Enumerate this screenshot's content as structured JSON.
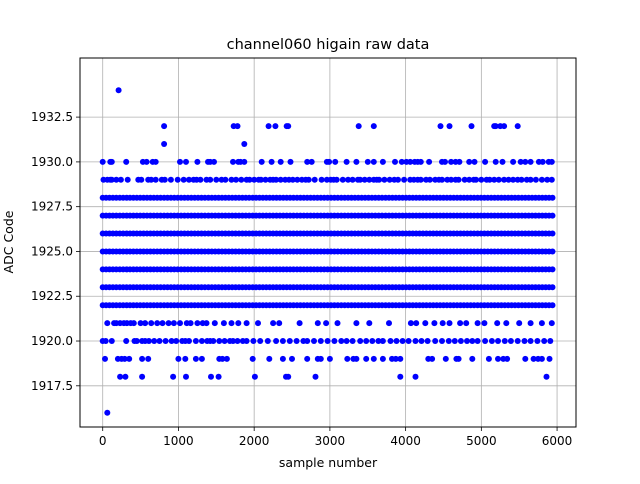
{
  "chart_data": {
    "type": "scatter",
    "title": "channel060 higain raw data",
    "xlabel": "sample number",
    "ylabel": "ADC Code",
    "xlim": [
      -300,
      6250
    ],
    "ylim": [
      1915.2,
      1935.8
    ],
    "xticks": [
      0,
      1000,
      2000,
      3000,
      4000,
      5000,
      6000
    ],
    "xtick_labels": [
      "0",
      "1000",
      "2000",
      "3000",
      "4000",
      "5000",
      "6000"
    ],
    "yticks": [
      1917.5,
      1920.0,
      1922.5,
      1925.0,
      1927.5,
      1930.0,
      1932.5
    ],
    "ytick_labels": [
      "1917.5",
      "1920.0",
      "1922.5",
      "1925.0",
      "1927.5",
      "1930.0",
      "1932.5"
    ],
    "grid": true,
    "marker_color": "#0000ff",
    "x_range": [
      0,
      5940
    ],
    "dense_levels": [
      1922,
      1923,
      1924,
      1925,
      1926,
      1927,
      1928
    ],
    "sparse_levels": [
      {
        "y": 1921,
        "x": [
          60,
          150,
          180,
          230,
          280,
          320,
          370,
          410,
          500,
          560,
          640,
          720,
          790,
          870,
          940,
          1020,
          1110,
          1160,
          1250,
          1320,
          1370,
          1480,
          1600,
          1700,
          1790,
          1900,
          2050,
          2250,
          2330,
          2600,
          2840,
          2950,
          3100,
          3350,
          3520,
          3780,
          4070,
          4140,
          4260,
          4380,
          4490,
          4580,
          4720,
          4800,
          4950,
          5040,
          5210,
          5330,
          5500,
          5650,
          5800,
          5930
        ]
      },
      {
        "y": 1929,
        "x": [
          10,
          60,
          100,
          120,
          180,
          240,
          330,
          470,
          510,
          600,
          640,
          700,
          780,
          820,
          900,
          990,
          1070,
          1140,
          1200,
          1240,
          1290,
          1370,
          1420,
          1500,
          1570,
          1620,
          1700,
          1760,
          1830,
          1900,
          1940,
          2000,
          2060,
          2090,
          2150,
          2210,
          2250,
          2290,
          2350,
          2410,
          2460,
          2510,
          2570,
          2630,
          2680,
          2720,
          2800,
          2890,
          2960,
          3010,
          3050,
          3090,
          3170,
          3240,
          3300,
          3370,
          3400,
          3460,
          3520,
          3580,
          3620,
          3650,
          3720,
          3790,
          3850,
          3900,
          3980,
          4060,
          4110,
          4160,
          4200,
          4270,
          4320,
          4390,
          4440,
          4480,
          4550,
          4600,
          4660,
          4700,
          4780,
          4840,
          4900,
          4930,
          5000,
          5070,
          5110,
          5170,
          5230,
          5300,
          5360,
          5420,
          5480,
          5530,
          5600,
          5650,
          5720,
          5800,
          5870,
          5930
        ]
      },
      {
        "y": 1920,
        "x": [
          0,
          40,
          120,
          310,
          420,
          450,
          520,
          560,
          610,
          680,
          750,
          830,
          910,
          970,
          1050,
          1090,
          1140,
          1230,
          1310,
          1380,
          1420,
          1460,
          1540,
          1610,
          1680,
          1720,
          1780,
          1850,
          1900,
          1990,
          2080,
          2180,
          2290,
          2380,
          2470,
          2560,
          2650,
          2700,
          2790,
          2880,
          2970,
          3060,
          3150,
          3220,
          3300,
          3400,
          3480,
          3560,
          3640,
          3700,
          3800,
          3880,
          3960,
          4040,
          4130,
          4210,
          4290,
          4390,
          4480,
          4570,
          4650,
          4730,
          4810,
          4880,
          4950,
          5050,
          5140,
          5220,
          5310,
          5390,
          5480,
          5570,
          5650,
          5740,
          5830,
          5910
        ]
      },
      {
        "y": 1930,
        "x": [
          0,
          100,
          120,
          310,
          530,
          580,
          660,
          700,
          1020,
          1100,
          1250,
          1390,
          1420,
          1470,
          1720,
          1790,
          1820,
          1870,
          2100,
          2230,
          2350,
          2480,
          2700,
          2760,
          2960,
          2990,
          3070,
          3220,
          3350,
          3500,
          3580,
          3700,
          3860,
          3950,
          4010,
          4060,
          4120,
          4160,
          4200,
          4310,
          4480,
          4520,
          4600,
          4660,
          4710,
          4840,
          4910,
          5050,
          5190,
          5280,
          5420,
          5520,
          5580,
          5650,
          5760,
          5810,
          5890,
          5930
        ]
      },
      {
        "y": 1919,
        "x": [
          30,
          200,
          250,
          290,
          350,
          520,
          600,
          1000,
          1090,
          1230,
          1310,
          1540,
          1580,
          1640,
          1980,
          2200,
          2380,
          2500,
          2700,
          2840,
          2880,
          3000,
          3230,
          3310,
          3350,
          3480,
          3580,
          3700,
          3820,
          3870,
          3930,
          4300,
          4350,
          4530,
          4670,
          4700,
          4880,
          5100,
          5220,
          5290,
          5340,
          5580,
          5690,
          5750,
          5800,
          5900
        ]
      },
      {
        "y": 1918,
        "x": [
          230,
          300,
          520,
          930,
          1100,
          1430,
          1530,
          2010,
          2420,
          2450,
          2810,
          3930,
          4130,
          5860
        ]
      },
      {
        "y": 1932,
        "x": [
          810,
          1730,
          1780,
          2190,
          2280,
          2430,
          2450,
          3380,
          3580,
          4460,
          4580,
          4870,
          5170,
          5190,
          5250,
          5300,
          5480
        ]
      },
      {
        "y": 1931,
        "x": [
          810,
          1870
        ]
      },
      {
        "y": 1934,
        "x": [
          210
        ]
      },
      {
        "y": 1916,
        "x": [
          60
        ]
      }
    ]
  }
}
